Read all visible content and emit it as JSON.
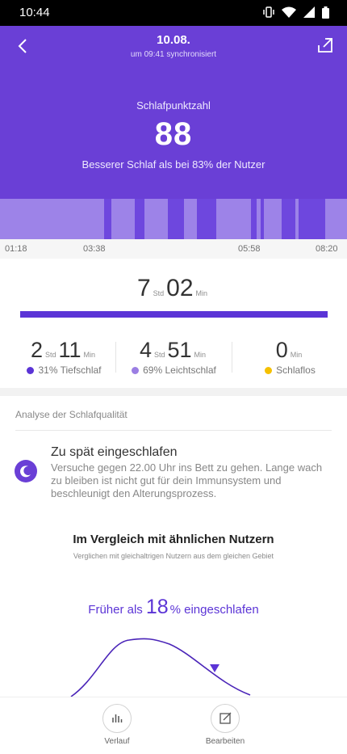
{
  "status_bar": {
    "time": "10:44"
  },
  "header": {
    "date": "10.08.",
    "sync_text": "um 09:41 synchronisiert",
    "score_label": "Schlafpunktzahl",
    "score": "88",
    "comparison": "Besserer Schlaf als bei 83% der Nutzer",
    "colors": {
      "background": "#6a3fd6",
      "deep_sleep": "#6e47de",
      "light_sleep": "#9d83e8"
    }
  },
  "timeline": {
    "ticks": [
      "01:18",
      "03:38",
      "05:58",
      "08:20"
    ]
  },
  "summary": {
    "total_hours": "7",
    "total_minutes": "02",
    "hours_unit": "Std",
    "minutes_unit": "Min",
    "stats": [
      {
        "hours": "2",
        "minutes": "11",
        "legend": "31% Tiefschlaf",
        "color": "#5b34d6"
      },
      {
        "hours": "4",
        "minutes": "51",
        "legend": "69% Leichtschlaf",
        "color": "#9b7ee3"
      },
      {
        "minutes": "0",
        "legend": "Schlaflos",
        "color": "#f5c000"
      }
    ]
  },
  "analysis": {
    "section_title": "Analyse der Schlafqualität",
    "tip_title": "Zu spät eingeschlafen",
    "tip_text": "Versuche gegen 22.00 Uhr ins Bett zu gehen. Lange wach zu bleiben ist nicht gut für dein Immunsystem und beschleunigt den Alterungsprozess."
  },
  "comparison": {
    "title": "Im Vergleich mit ähnlichen Nutzern",
    "subtitle": "Verglichen mit gleichaltrigen Nutzern aus dem gleichen Gebiet",
    "prefix": "Früher als",
    "percent": "18",
    "suffix": "% eingeschlafen",
    "marker_percentile": 18
  },
  "bottom_nav": {
    "history_label": "Verlauf",
    "edit_label": "Bearbeiten"
  }
}
